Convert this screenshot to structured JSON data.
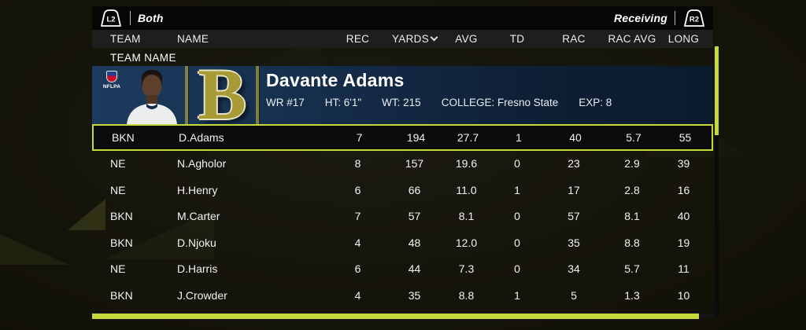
{
  "topbar": {
    "left_button": "L2",
    "left_label": "Both",
    "right_label": "Receiving",
    "right_button": "R2"
  },
  "table": {
    "group_label": "TEAM NAME",
    "columns": [
      {
        "key": "team",
        "label": "TEAM",
        "align": "left"
      },
      {
        "key": "name",
        "label": "NAME",
        "align": "left"
      },
      {
        "key": "rec",
        "label": "REC",
        "align": "center"
      },
      {
        "key": "yards",
        "label": "YARDS",
        "align": "center",
        "sorted": "desc"
      },
      {
        "key": "avg",
        "label": "AVG",
        "align": "center"
      },
      {
        "key": "td",
        "label": "TD",
        "align": "center"
      },
      {
        "key": "rac",
        "label": "RAC",
        "align": "center"
      },
      {
        "key": "rac_avg",
        "label": "RAC AVG",
        "align": "center"
      },
      {
        "key": "long",
        "label": "LONG",
        "align": "center"
      }
    ],
    "rows": [
      {
        "team": "BKN",
        "name": "D.Adams",
        "rec": "7",
        "yards": "194",
        "avg": "27.7",
        "td": "1",
        "rac": "40",
        "rac_avg": "5.7",
        "long": "55",
        "selected": true
      },
      {
        "team": "NE",
        "name": "N.Agholor",
        "rec": "8",
        "yards": "157",
        "avg": "19.6",
        "td": "0",
        "rac": "23",
        "rac_avg": "2.9",
        "long": "39",
        "selected": false
      },
      {
        "team": "NE",
        "name": "H.Henry",
        "rec": "6",
        "yards": "66",
        "avg": "11.0",
        "td": "1",
        "rac": "17",
        "rac_avg": "2.8",
        "long": "16",
        "selected": false
      },
      {
        "team": "BKN",
        "name": "M.Carter",
        "rec": "7",
        "yards": "57",
        "avg": "8.1",
        "td": "0",
        "rac": "57",
        "rac_avg": "8.1",
        "long": "40",
        "selected": false
      },
      {
        "team": "BKN",
        "name": "D.Njoku",
        "rec": "4",
        "yards": "48",
        "avg": "12.0",
        "td": "0",
        "rac": "35",
        "rac_avg": "8.8",
        "long": "19",
        "selected": false
      },
      {
        "team": "NE",
        "name": "D.Harris",
        "rec": "6",
        "yards": "44",
        "avg": "7.3",
        "td": "0",
        "rac": "34",
        "rac_avg": "5.7",
        "long": "11",
        "selected": false
      },
      {
        "team": "BKN",
        "name": "J.Crowder",
        "rec": "4",
        "yards": "35",
        "avg": "8.8",
        "td": "1",
        "rac": "5",
        "rac_avg": "1.3",
        "long": "10",
        "selected": false
      }
    ]
  },
  "player_card": {
    "name": "Davante Adams",
    "details": [
      "WR #17",
      "HT: 6'1\"",
      "WT: 215",
      "COLLEGE: Fresno State",
      "EXP: 8"
    ],
    "nflpa_label": "NFLPA",
    "team_logo_letter": "B"
  },
  "colors": {
    "accent": "#c6d93a",
    "card_blue_left": "#1d3b5e",
    "card_blue_right": "#0e1e33"
  }
}
